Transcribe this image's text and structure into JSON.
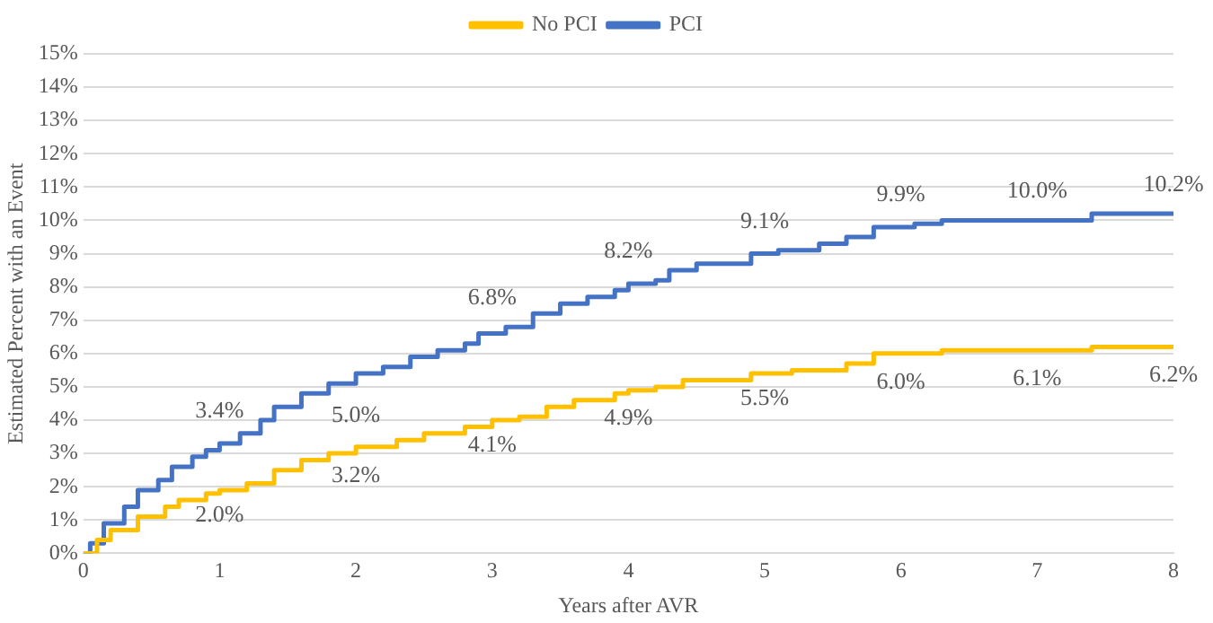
{
  "chart_data": {
    "type": "step",
    "xlabel": "Years after AVR",
    "ylabel": "Estimated Percent with an Event",
    "xlim": [
      0,
      8
    ],
    "xticks": [
      0,
      1,
      2,
      3,
      4,
      5,
      6,
      7,
      8
    ],
    "ylim": [
      0,
      15
    ],
    "yticks": [
      {
        "value": 0,
        "label": "0%"
      },
      {
        "value": 1,
        "label": "1%"
      },
      {
        "value": 2,
        "label": "2%"
      },
      {
        "value": 3,
        "label": "3%"
      },
      {
        "value": 4,
        "label": "4%"
      },
      {
        "value": 5,
        "label": "5%"
      },
      {
        "value": 6,
        "label": "6%"
      },
      {
        "value": 7,
        "label": "7%"
      },
      {
        "value": 8,
        "label": "8%"
      },
      {
        "value": 9,
        "label": "9%"
      },
      {
        "value": 10,
        "label": "10%"
      },
      {
        "value": 11,
        "label": "11%"
      },
      {
        "value": 12,
        "label": "12%"
      },
      {
        "value": 13,
        "label": "13%"
      },
      {
        "value": 14,
        "label": "14%"
      },
      {
        "value": 15,
        "label": "15%"
      }
    ],
    "grid": "y",
    "legend": "top",
    "marker": "none",
    "line_style": "solid",
    "series": [
      {
        "name": "No PCI",
        "color": "#ffc000",
        "x": [
          0,
          0.1,
          0.2,
          0.4,
          0.6,
          0.7,
          0.9,
          1,
          1.2,
          1.4,
          1.6,
          1.8,
          2,
          2.3,
          2.5,
          2.8,
          3,
          3.2,
          3.4,
          3.6,
          3.9,
          4,
          4.2,
          4.4,
          4.9,
          5.2,
          5.6,
          5.8,
          6.3,
          7.4,
          8
        ],
        "values": [
          0,
          0.4,
          0.7,
          1.1,
          1.4,
          1.6,
          1.8,
          1.9,
          2.1,
          2.5,
          2.8,
          3.0,
          3.2,
          3.4,
          3.6,
          3.8,
          4.0,
          4.1,
          4.4,
          4.6,
          4.8,
          4.9,
          5.0,
          5.2,
          5.4,
          5.5,
          5.7,
          6.0,
          6.1,
          6.2,
          6.2
        ]
      },
      {
        "name": "PCI",
        "color": "#4472c4",
        "x": [
          0,
          0.05,
          0.15,
          0.3,
          0.4,
          0.55,
          0.65,
          0.8,
          0.9,
          1,
          1.15,
          1.3,
          1.4,
          1.6,
          1.8,
          2,
          2.2,
          2.4,
          2.6,
          2.8,
          2.9,
          3.1,
          3.3,
          3.5,
          3.7,
          3.9,
          4,
          4.2,
          4.3,
          4.5,
          4.9,
          5.1,
          5.4,
          5.6,
          5.8,
          6.1,
          6.3,
          7.4,
          8
        ],
        "values": [
          0,
          0.3,
          0.9,
          1.4,
          1.9,
          2.2,
          2.6,
          2.9,
          3.1,
          3.3,
          3.6,
          4.0,
          4.4,
          4.8,
          5.1,
          5.4,
          5.6,
          5.9,
          6.1,
          6.3,
          6.6,
          6.8,
          7.2,
          7.5,
          7.7,
          7.9,
          8.1,
          8.2,
          8.5,
          8.7,
          9.0,
          9.1,
          9.3,
          9.5,
          9.8,
          9.9,
          10.0,
          10.2,
          10.2
        ]
      }
    ],
    "annotations": [
      {
        "text": "2.0%",
        "x": 1,
        "y": 2.0
      },
      {
        "text": "3.2%",
        "x": 2,
        "y": 3.2
      },
      {
        "text": "4.1%",
        "x": 3,
        "y": 4.1
      },
      {
        "text": "4.9%",
        "x": 4,
        "y": 4.9
      },
      {
        "text": "5.5%",
        "x": 5,
        "y": 5.5
      },
      {
        "text": "6.0%",
        "x": 6,
        "y": 6.0
      },
      {
        "text": "6.1%",
        "x": 7,
        "y": 6.1
      },
      {
        "text": "6.2%",
        "x": 8,
        "y": 6.2
      },
      {
        "text": "3.4%",
        "x": 1,
        "y": 3.4
      },
      {
        "text": "5.0%",
        "x": 2,
        "y": 5.0
      },
      {
        "text": "6.8%",
        "x": 3,
        "y": 6.8
      },
      {
        "text": "8.2%",
        "x": 4,
        "y": 8.2
      },
      {
        "text": "9.1%",
        "x": 5,
        "y": 9.1
      },
      {
        "text": "9.9%",
        "x": 6,
        "y": 9.9
      },
      {
        "text": "10.0%",
        "x": 7,
        "y": 10.0
      },
      {
        "text": "10.2%",
        "x": 8,
        "y": 10.2
      }
    ]
  }
}
